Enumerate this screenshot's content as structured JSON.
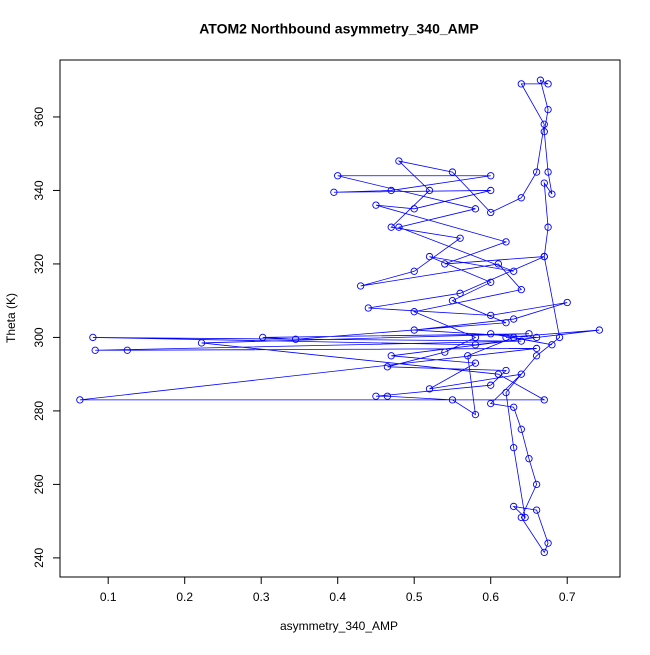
{
  "chart_data": {
    "type": "line",
    "markers": true,
    "color": "#0000ff",
    "title": "ATOM2 Northbound asymmetry_340_AMP",
    "x_label": "asymmetry_340_AMP",
    "y_label": "Theta (K)",
    "xlim": [
      0.037,
      0.769
    ],
    "ylim": [
      234.8,
      375.5
    ],
    "xticks": [
      0.1,
      0.2,
      0.3,
      0.4,
      0.5,
      0.6,
      0.7
    ],
    "yticks": [
      240,
      260,
      280,
      300,
      320,
      340,
      360
    ],
    "series": [
      {
        "name": "asymmetry_340_AMP",
        "x": [
          0.62,
          0.742,
          0.58,
          0.08,
          0.64,
          0.083,
          0.125,
          0.66,
          0.063,
          0.67,
          0.61,
          0.222,
          0.65,
          0.302,
          0.345,
          0.62,
          0.55,
          0.6,
          0.52,
          0.63,
          0.48,
          0.58,
          0.4,
          0.6,
          0.47,
          0.395,
          0.6,
          0.5,
          0.45,
          0.62,
          0.54,
          0.67,
          0.56,
          0.44,
          0.6,
          0.7,
          0.63,
          0.5,
          0.66,
          0.47,
          0.58,
          0.52,
          0.64,
          0.6,
          0.63,
          0.64,
          0.65,
          0.66,
          0.64,
          0.67,
          0.675,
          0.66,
          0.63,
          0.645,
          0.63,
          0.62,
          0.66,
          0.69,
          0.67,
          0.675,
          0.67,
          0.68,
          0.675,
          0.67,
          0.675,
          0.665,
          0.675,
          0.64,
          0.67,
          0.66,
          0.64,
          0.6,
          0.55,
          0.48,
          0.52,
          0.47,
          0.56,
          0.5,
          0.43,
          0.61,
          0.64,
          0.5,
          0.58,
          0.54,
          0.465,
          0.62,
          0.6,
          0.45,
          0.465,
          0.55,
          0.58,
          0.57,
          0.63,
          0.68,
          0.6
        ],
        "values": [
          300,
          302,
          298,
          300,
          299,
          296.5,
          296.5,
          297,
          283,
          283,
          290,
          298.5,
          301,
          300,
          299.5,
          304,
          310,
          315,
          322,
          318,
          330,
          335,
          344,
          344,
          340,
          339.5,
          340,
          335,
          336,
          326,
          320,
          322,
          312,
          308,
          306,
          309.5,
          305,
          302,
          300,
          295,
          293,
          286,
          290,
          282,
          281,
          275,
          267,
          260,
          251,
          241.5,
          244,
          253,
          254,
          251,
          270,
          285,
          295,
          300,
          322,
          330,
          342,
          339,
          345,
          356,
          362,
          370,
          369,
          369,
          358,
          345,
          338,
          334,
          345,
          348,
          340,
          330,
          327,
          318,
          314,
          320,
          313,
          307,
          300,
          296,
          292,
          291,
          287,
          284,
          284,
          283,
          279,
          295,
          300,
          298,
          301
        ]
      }
    ]
  }
}
